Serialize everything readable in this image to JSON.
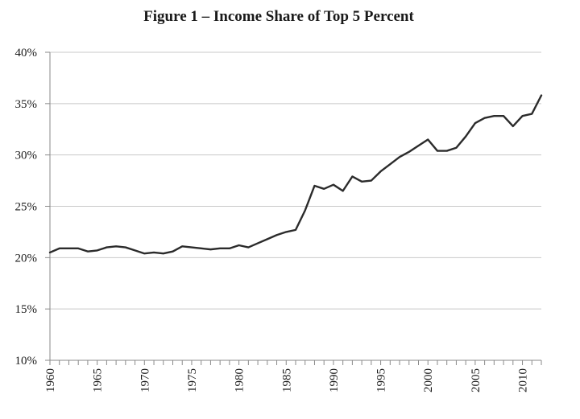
{
  "chart_data": {
    "type": "line",
    "title": "Figure 1 – Income Share of Top 5 Percent",
    "xlabel": "",
    "ylabel": "",
    "xlim": [
      1960,
      2012
    ],
    "ylim": [
      10,
      40
    ],
    "grid": true,
    "legend": "none",
    "y_ticks": [
      {
        "value": 10,
        "label": "10%"
      },
      {
        "value": 15,
        "label": "15%"
      },
      {
        "value": 20,
        "label": "20%"
      },
      {
        "value": 25,
        "label": "25%"
      },
      {
        "value": 30,
        "label": "30%"
      },
      {
        "value": 35,
        "label": "35%"
      },
      {
        "value": 40,
        "label": "40%"
      }
    ],
    "x_ticks": [
      {
        "value": 1960,
        "label": "1960"
      },
      {
        "value": 1965,
        "label": "1965"
      },
      {
        "value": 1970,
        "label": "1970"
      },
      {
        "value": 1975,
        "label": "1975"
      },
      {
        "value": 1980,
        "label": "1980"
      },
      {
        "value": 1985,
        "label": "1985"
      },
      {
        "value": 1990,
        "label": "1990"
      },
      {
        "value": 1995,
        "label": "1995"
      },
      {
        "value": 2000,
        "label": "2000"
      },
      {
        "value": 2005,
        "label": "2005"
      },
      {
        "value": 2010,
        "label": "2010"
      }
    ],
    "series": [
      {
        "color": "#2b2b2b",
        "x": [
          1960,
          1961,
          1962,
          1963,
          1964,
          1965,
          1966,
          1967,
          1968,
          1969,
          1970,
          1971,
          1972,
          1973,
          1974,
          1975,
          1976,
          1977,
          1978,
          1979,
          1980,
          1981,
          1982,
          1983,
          1984,
          1985,
          1986,
          1987,
          1988,
          1989,
          1990,
          1991,
          1992,
          1993,
          1994,
          1995,
          1996,
          1997,
          1998,
          1999,
          2000,
          2001,
          2002,
          2003,
          2004,
          2005,
          2006,
          2007,
          2008,
          2009,
          2010,
          2011,
          2012
        ],
        "values": [
          20.5,
          20.9,
          20.9,
          20.9,
          20.6,
          20.7,
          21.0,
          21.1,
          21.0,
          20.7,
          20.4,
          20.5,
          20.4,
          20.6,
          21.1,
          21.0,
          20.9,
          20.8,
          20.9,
          20.9,
          21.2,
          21.0,
          21.4,
          21.8,
          22.2,
          22.5,
          22.7,
          24.6,
          27.0,
          26.7,
          27.1,
          26.5,
          27.9,
          27.4,
          27.5,
          28.4,
          29.1,
          29.8,
          30.3,
          30.9,
          31.5,
          30.4,
          30.4,
          30.7,
          31.8,
          33.1,
          33.6,
          33.8,
          33.8,
          32.8,
          33.8,
          34.0,
          35.8
        ]
      }
    ]
  }
}
